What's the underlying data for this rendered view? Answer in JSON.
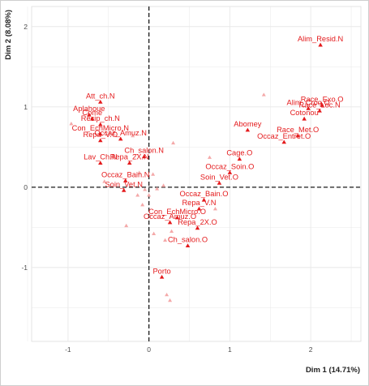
{
  "chart_data": {
    "type": "scatter",
    "xlabel": "Dim 1 (14.71%)",
    "ylabel": "Dim 2 (8.08%)",
    "xlim": [
      -1.45,
      2.62
    ],
    "ylim": [
      -1.92,
      2.25
    ],
    "x_ticks": [
      -1,
      0,
      1,
      2
    ],
    "y_ticks": [
      -1,
      0,
      1,
      2
    ],
    "x_tick_labels": [
      "-1",
      "0",
      "1",
      "2"
    ],
    "y_tick_labels": [
      "-1",
      "0",
      "1",
      "2"
    ],
    "grid": true,
    "reference_lines": {
      "x": 0,
      "y": 0
    },
    "colors": {
      "active": "#e41a1c",
      "supplementary": "#f4a9a9",
      "grid": "#e8e8e8",
      "background": "#ffffff"
    },
    "points": [
      {
        "label": "Alim_Resid.N",
        "x": 2.12,
        "y": 1.77
      },
      {
        "label": "Race_Exo.O",
        "x": 2.14,
        "y": 1.02
      },
      {
        "label": "Alim_Croq.O",
        "x": 1.97,
        "y": 0.98
      },
      {
        "label": "Race_Loc.N",
        "x": 2.11,
        "y": 0.95
      },
      {
        "label": "Cotonou",
        "x": 1.92,
        "y": 0.85
      },
      {
        "label": "Race_Met.O",
        "x": 1.84,
        "y": 0.64
      },
      {
        "label": "Occaz_Entret.O",
        "x": 1.67,
        "y": 0.56
      },
      {
        "label": "Abomey",
        "x": 1.22,
        "y": 0.71
      },
      {
        "label": "Cage.O",
        "x": 1.12,
        "y": 0.35
      },
      {
        "label": "Occaz_Soin.O",
        "x": 1.0,
        "y": 0.18
      },
      {
        "label": "Soin_Vet.O",
        "x": 0.87,
        "y": 0.05
      },
      {
        "label": "Occaz_Bain.O",
        "x": 0.68,
        "y": -0.16
      },
      {
        "label": "Repa_V.N",
        "x": 0.62,
        "y": -0.27
      },
      {
        "label": "Con_EchMicro.O",
        "x": 0.35,
        "y": -0.38
      },
      {
        "label": "Repa_2X.O",
        "x": 0.6,
        "y": -0.51
      },
      {
        "label": "Occaz_Amuz.O",
        "x": 0.26,
        "y": -0.44
      },
      {
        "label": "Ch_salon.O",
        "x": 0.48,
        "y": -0.73
      },
      {
        "label": "Porto",
        "x": 0.16,
        "y": -1.12
      },
      {
        "label": "Att_ch.N",
        "x": -0.6,
        "y": 1.06
      },
      {
        "label": "Aplahoue",
        "x": -0.74,
        "y": 0.9
      },
      {
        "label": "Come",
        "x": -0.7,
        "y": 0.85
      },
      {
        "label": "Recip_ch.N",
        "x": -0.6,
        "y": 0.78
      },
      {
        "label": "Con_EchMicro.N",
        "x": -0.6,
        "y": 0.66
      },
      {
        "label": "Occaz_Amuz.N",
        "x": -0.35,
        "y": 0.6
      },
      {
        "label": "Repa_V.O",
        "x": -0.6,
        "y": 0.58
      },
      {
        "label": "Ch_salon.N",
        "x": -0.06,
        "y": 0.38
      },
      {
        "label": "Repa_2X.N",
        "x": -0.24,
        "y": 0.3
      },
      {
        "label": "Lav_Ch.N",
        "x": -0.6,
        "y": 0.3
      },
      {
        "label": "Occaz_Bain.N",
        "x": -0.29,
        "y": 0.08
      },
      {
        "label": "Soin_Vet.N",
        "x": -0.31,
        "y": -0.04
      }
    ],
    "supplementary_points": [
      {
        "x": -0.96,
        "y": 0.79
      },
      {
        "x": -0.2,
        "y": 0.64
      },
      {
        "x": -0.55,
        "y": 0.07
      },
      {
        "x": -0.12,
        "y": 0.18
      },
      {
        "x": 0.05,
        "y": 0.16
      },
      {
        "x": 0.18,
        "y": 0.02
      },
      {
        "x": -0.05,
        "y": -0.03
      },
      {
        "x": 0.1,
        "y": -0.02
      },
      {
        "x": -0.14,
        "y": -0.1
      },
      {
        "x": 0.0,
        "y": -0.1
      },
      {
        "x": -0.08,
        "y": -0.22
      },
      {
        "x": -0.28,
        "y": -0.48
      },
      {
        "x": 0.2,
        "y": -0.66
      },
      {
        "x": 0.06,
        "y": -0.58
      },
      {
        "x": 0.28,
        "y": -0.55
      },
      {
        "x": 0.22,
        "y": -1.34
      },
      {
        "x": 0.26,
        "y": -1.41
      },
      {
        "x": 0.75,
        "y": 0.37
      },
      {
        "x": 0.82,
        "y": -0.27
      },
      {
        "x": 1.42,
        "y": 1.15
      },
      {
        "x": 0.3,
        "y": 0.55
      }
    ]
  }
}
